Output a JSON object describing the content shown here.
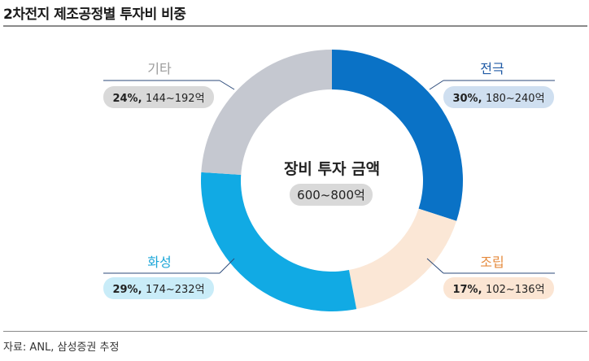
{
  "header": {
    "title": "2차전지 제조공정별 투자비 비중"
  },
  "footer": {
    "source": "자료: ANL, 삼성증권 추정"
  },
  "chart_data": {
    "type": "pie",
    "title": "2차전지 제조공정별 투자비 비중",
    "center_label": "장비 투자 금액",
    "center_value": "600~800억",
    "slices": [
      {
        "name": "전극",
        "percent": 30,
        "pct_label": "30%,",
        "range": "180~240억",
        "color": "#0a72c6",
        "label_color": "#1f5aa5",
        "pill_color": "#cfdff0",
        "side": "right-top"
      },
      {
        "name": "조립",
        "percent": 17,
        "pct_label": "17%,",
        "range": "102~136억",
        "color": "#fbe7d6",
        "label_color": "#e58a3c",
        "pill_color": "#fbe5d3",
        "side": "right-bottom"
      },
      {
        "name": "화성",
        "percent": 29,
        "pct_label": "29%,",
        "range": "174~232억",
        "color": "#11aae4",
        "label_color": "#1aa6d8",
        "pill_color": "#c9ecf8",
        "side": "left-bottom"
      },
      {
        "name": "기타",
        "percent": 24,
        "pct_label": "24%,",
        "range": "144~192억",
        "color": "#c5c8d0",
        "label_color": "#9a9a9a",
        "pill_color": "#d9d9d9",
        "side": "left-top"
      }
    ]
  }
}
